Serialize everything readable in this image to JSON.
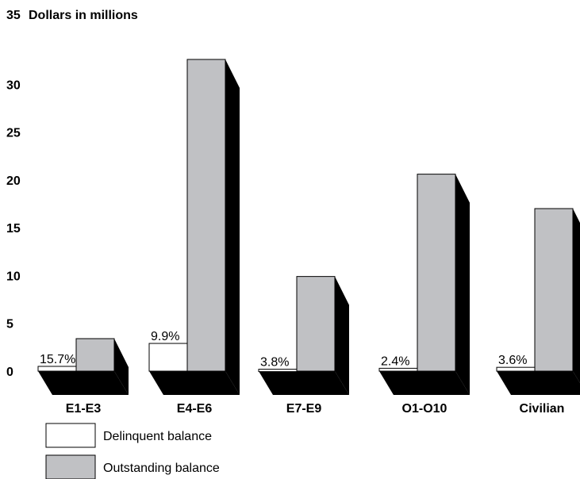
{
  "chart_data": {
    "type": "bar",
    "ylabel": "Dollars in millions",
    "ylim": [
      0,
      35
    ],
    "yticks": [
      "0",
      "5",
      "10",
      "15",
      "20",
      "25",
      "30",
      "35"
    ],
    "categories": [
      "E1-E3",
      "E4-E6",
      "E7-E9",
      "O1-O10",
      "Civilian"
    ],
    "series": [
      {
        "name": "Delinquent balance",
        "color": "#ffffff",
        "values": [
          0.5,
          2.9,
          0.2,
          0.3,
          0.4
        ]
      },
      {
        "name": "Outstanding balance",
        "color": "#c0c1c4",
        "values": [
          3.4,
          32.6,
          9.9,
          20.6,
          17.0
        ]
      }
    ],
    "data_labels": [
      "15.7%",
      "9.9%",
      "3.8%",
      "2.4%",
      "3.6%"
    ],
    "legend_position": "bottom-left",
    "grid": false,
    "style": "3d"
  }
}
